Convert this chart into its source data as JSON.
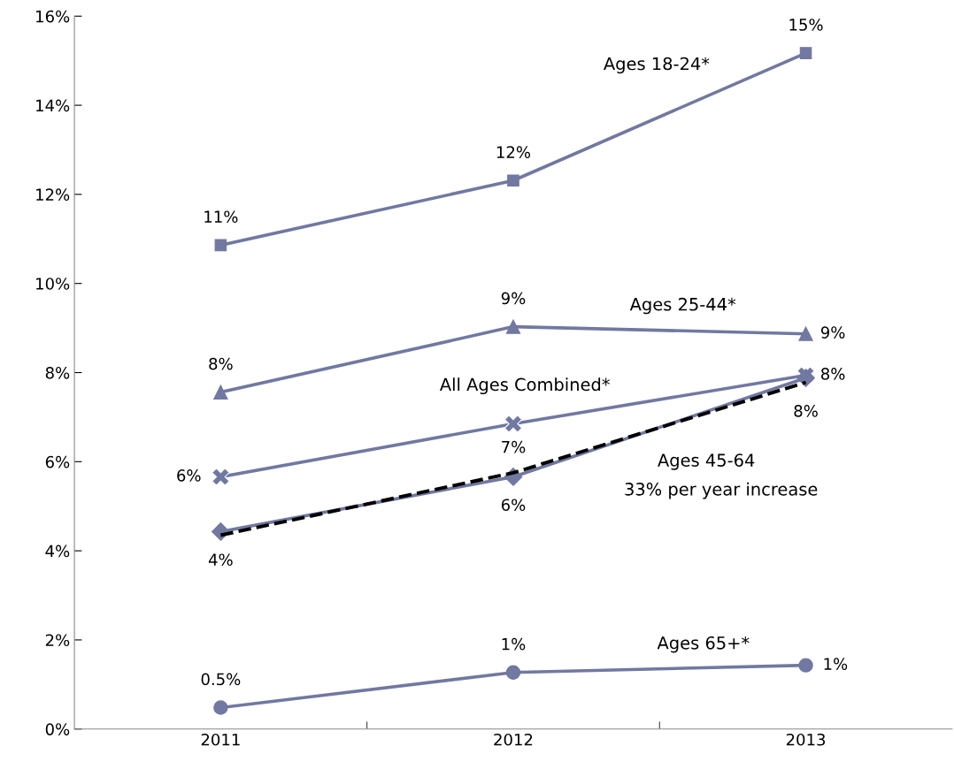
{
  "chart_data": {
    "type": "line",
    "categories": [
      "2011",
      "2012",
      "2013"
    ],
    "ylim": [
      0,
      16
    ],
    "yticks": [
      {
        "value": 0,
        "label": "0%"
      },
      {
        "value": 2,
        "label": "2%"
      },
      {
        "value": 4,
        "label": "4%"
      },
      {
        "value": 6,
        "label": "6%"
      },
      {
        "value": 8,
        "label": "8%"
      },
      {
        "value": 10,
        "label": "10%"
      },
      {
        "value": 12,
        "label": "12%"
      },
      {
        "value": 14,
        "label": "14%"
      },
      {
        "value": 16,
        "label": "16%"
      }
    ],
    "grid": false,
    "legend": false,
    "series": [
      {
        "name": "Ages 18-24*",
        "color": "#7178a1",
        "marker": "square",
        "values": [
          10.86,
          12.31,
          15.17
        ],
        "value_labels": [
          "11%",
          "12%",
          "15%"
        ]
      },
      {
        "name": "Ages 25-44*",
        "color": "#7178a1",
        "marker": "triangle",
        "values": [
          7.56,
          9.03,
          8.87
        ],
        "value_labels": [
          "8%",
          "9%",
          "9%"
        ]
      },
      {
        "name": "All Ages Combined*",
        "color": "#7178a1",
        "marker": "cross",
        "values": [
          5.66,
          6.85,
          7.94
        ],
        "value_labels": [
          "6%",
          "7%",
          "8%"
        ]
      },
      {
        "name": "Ages 45-64",
        "color": "#7178a1",
        "marker": "diamond",
        "values": [
          4.43,
          5.66,
          7.88
        ],
        "value_labels": [
          "4%",
          "6%",
          "8%"
        ]
      },
      {
        "name": "Ages 65+*",
        "color": "#7178a1",
        "marker": "circle",
        "values": [
          0.48,
          1.27,
          1.43
        ],
        "value_labels": [
          "0.5%",
          "1%",
          "1%"
        ]
      },
      {
        "name": "33% per year increase",
        "color": "#000000",
        "marker": "none",
        "line_style": "dashed",
        "values": [
          4.35,
          5.75,
          7.78
        ]
      }
    ]
  }
}
